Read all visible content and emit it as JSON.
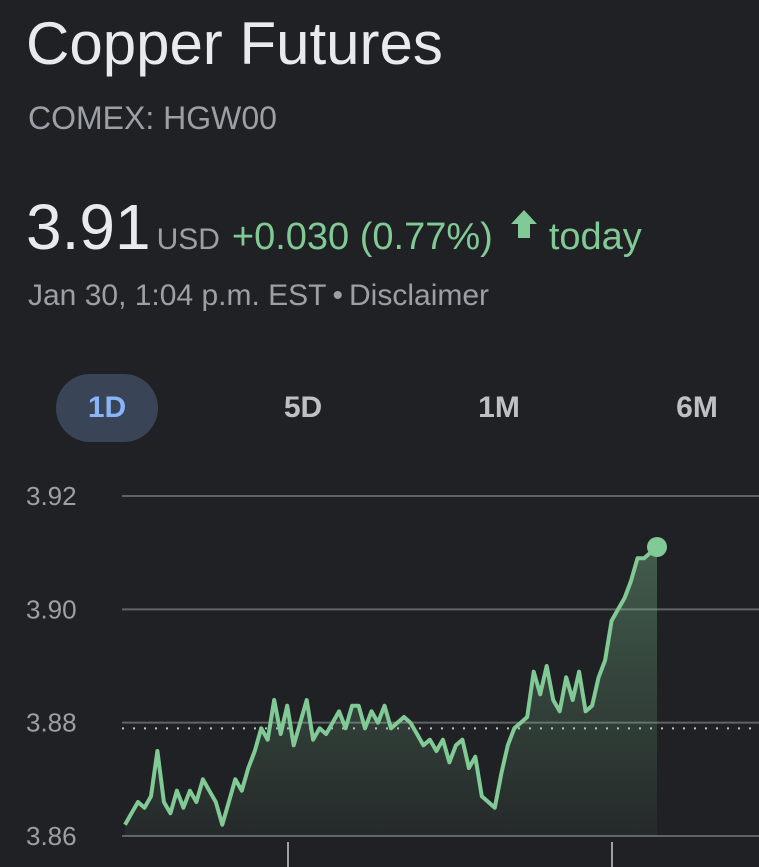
{
  "header": {
    "title": "Copper Futures",
    "exchange": "COMEX: HGW00"
  },
  "quote": {
    "price": "3.91",
    "currency": "USD",
    "change": "+0.030 (0.77%)",
    "direction_icon": "arrow-up-icon",
    "period": "today",
    "timestamp": "Jan 30, 1:04 p.m. EST",
    "separator": "•",
    "disclaimer": "Disclaimer"
  },
  "range_tabs": [
    {
      "label": "1D",
      "active": true
    },
    {
      "label": "5D",
      "active": false
    },
    {
      "label": "1M",
      "active": false
    },
    {
      "label": "6M",
      "active": false
    }
  ],
  "colors": {
    "background": "#202124",
    "positive": "#81c995",
    "active_tab_bg": "#394457",
    "active_tab_text": "#8ab4f8",
    "muted_text": "#9aa0a6"
  },
  "chart_data": {
    "type": "area",
    "ylim": [
      3.86,
      3.92
    ],
    "yticks": [
      "3.86",
      "3.88",
      "3.90",
      "3.92"
    ],
    "previous_close": 3.879,
    "grid": true,
    "values": [
      3.862,
      3.864,
      3.866,
      3.865,
      3.867,
      3.875,
      3.866,
      3.864,
      3.868,
      3.865,
      3.868,
      3.866,
      3.87,
      3.868,
      3.866,
      3.862,
      3.866,
      3.87,
      3.868,
      3.872,
      3.875,
      3.879,
      3.877,
      3.884,
      3.878,
      3.883,
      3.876,
      3.88,
      3.884,
      3.877,
      3.879,
      3.878,
      3.88,
      3.882,
      3.879,
      3.883,
      3.883,
      3.879,
      3.882,
      3.88,
      3.883,
      3.879,
      3.88,
      3.881,
      3.88,
      3.878,
      3.876,
      3.877,
      3.875,
      3.877,
      3.873,
      3.876,
      3.877,
      3.872,
      3.874,
      3.867,
      3.866,
      3.865,
      3.871,
      3.876,
      3.879,
      3.88,
      3.881,
      3.889,
      3.885,
      3.89,
      3.884,
      3.882,
      3.888,
      3.884,
      3.889,
      3.882,
      3.883,
      3.888,
      3.891,
      3.898,
      3.9,
      3.902,
      3.905,
      3.909,
      3.909,
      3.91,
      3.911
    ]
  }
}
